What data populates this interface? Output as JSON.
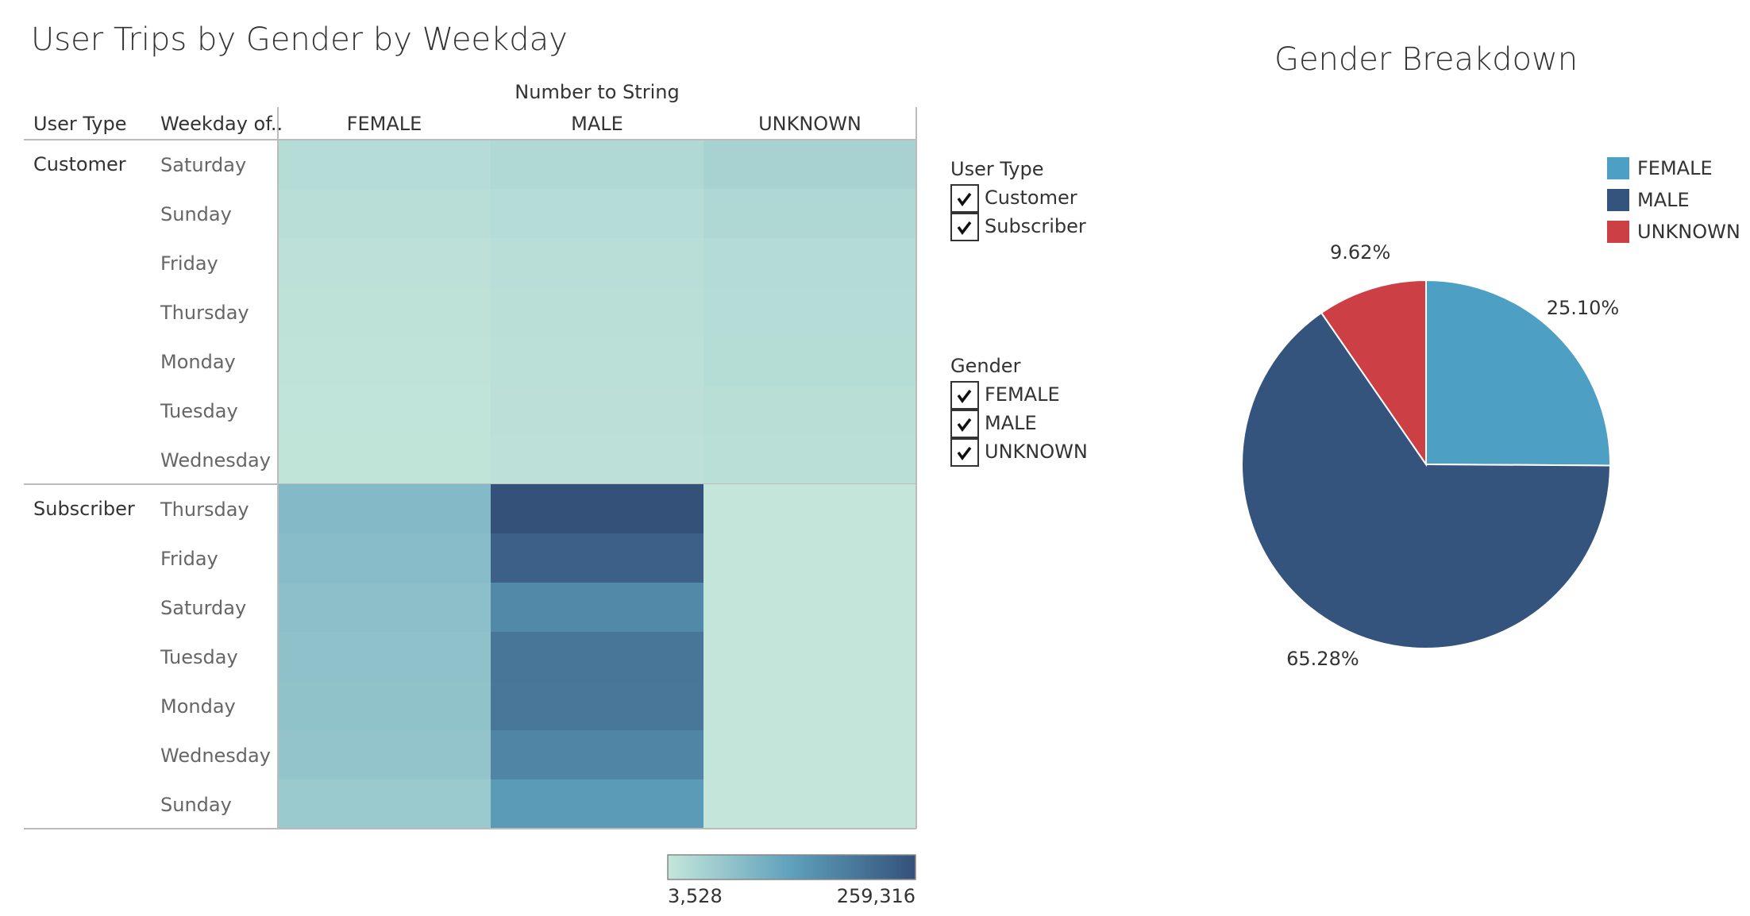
{
  "chart_data": [
    {
      "type": "heatmap",
      "title": "User Trips by Gender by Weekday",
      "column_title": "Number to String",
      "row_headers": [
        "User Type",
        "Weekday of.."
      ],
      "columns": [
        "FEMALE",
        "MALE",
        "UNKNOWN"
      ],
      "groups": [
        {
          "name": "Customer",
          "rows": [
            "Saturday",
            "Sunday",
            "Friday",
            "Thursday",
            "Monday",
            "Tuesday",
            "Wednesday"
          ],
          "values": [
            [
              22000,
              28000,
              40000
            ],
            [
              18000,
              22000,
              30000
            ],
            [
              12000,
              18000,
              24000
            ],
            [
              10000,
              16000,
              22000
            ],
            [
              9000,
              15000,
              21000
            ],
            [
              8000,
              14000,
              19000
            ],
            [
              7000,
              12000,
              17000
            ]
          ]
        },
        {
          "name": "Subscriber",
          "rows": [
            "Thursday",
            "Friday",
            "Saturday",
            "Tuesday",
            "Monday",
            "Wednesday",
            "Sunday"
          ],
          "values": [
            [
              85000,
              259316,
              4000
            ],
            [
              80000,
              235000,
              3800
            ],
            [
              75000,
              170000,
              3700
            ],
            [
              72000,
              200000,
              3600
            ],
            [
              70000,
              198000,
              3600
            ],
            [
              65000,
              175000,
              3528
            ],
            [
              55000,
              140000,
              3528
            ]
          ]
        }
      ],
      "colors": [
        "#c4e6da",
        "#5fa0bc",
        "#34517a"
      ],
      "colorlim": [
        3528,
        259316
      ],
      "colorticks": [
        {
          "value": 3528,
          "label": "3,528"
        },
        {
          "value": 259316,
          "label": "259,316"
        }
      ]
    },
    {
      "type": "pie",
      "title": "Gender Breakdown",
      "categories": [
        "FEMALE",
        "MALE",
        "UNKNOWN"
      ],
      "values": [
        25.1,
        65.28,
        9.62
      ],
      "value_labels": [
        "25.10%",
        "65.28%",
        "9.62%"
      ],
      "colors": [
        "#4e9fc4",
        "#34547d",
        "#cc3f45"
      ]
    }
  ],
  "filters": [
    {
      "title": "User Type",
      "options": [
        "Customer",
        "Subscriber"
      ]
    },
    {
      "title": "Gender",
      "options": [
        "FEMALE",
        "MALE",
        "UNKNOWN"
      ]
    }
  ]
}
